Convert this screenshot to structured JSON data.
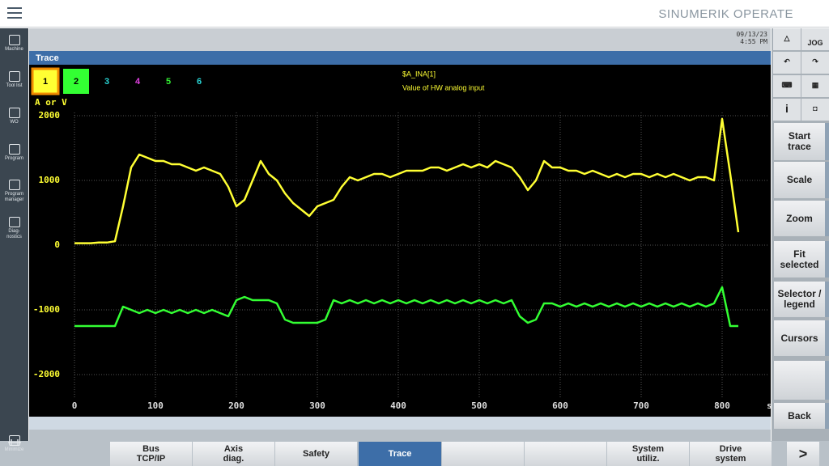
{
  "header": {
    "brand": "SINUMERIK OPERATE",
    "date": "09/13/23",
    "time": "4:55 PM",
    "jog": "JOG"
  },
  "sidebar": [
    "Machine",
    "Tool list",
    "WO",
    "Program",
    "Program\nmanager",
    "Diag-\nnostics",
    "Minimize"
  ],
  "window_title": "Trace",
  "channels": [
    {
      "label": "1",
      "color": "#000000"
    },
    {
      "label": "2",
      "color": "#000000"
    },
    {
      "label": "3",
      "color": "#29d3d3"
    },
    {
      "label": "4",
      "color": "#e040e0"
    },
    {
      "label": "5",
      "color": "#33ee33"
    },
    {
      "label": "6",
      "color": "#29d3d3"
    }
  ],
  "signal": {
    "name": "$A_INA[1]",
    "description": "Value of HW analog input"
  },
  "softkeys": [
    "Start\ntrace",
    "Scale",
    "Zoom",
    "Fit\nselected",
    "Selector /\nlegend",
    "Cursors",
    "Back"
  ],
  "bottom_keys": [
    "Bus\nTCP/IP",
    "Axis\ndiag.",
    "Safety",
    "Trace",
    "System\nutiliz.",
    "Drive\nsystem",
    ">"
  ],
  "chart_data": {
    "type": "line",
    "y_label": "A or V",
    "x_label": "s",
    "x": [
      0,
      10,
      20,
      30,
      40,
      50,
      60,
      70,
      80,
      90,
      100,
      110,
      120,
      130,
      140,
      150,
      160,
      170,
      180,
      190,
      200,
      210,
      220,
      230,
      240,
      250,
      260,
      270,
      280,
      290,
      300,
      310,
      320,
      330,
      340,
      350,
      360,
      370,
      380,
      390,
      400,
      410,
      420,
      430,
      440,
      450,
      460,
      470,
      480,
      490,
      500,
      510,
      520,
      530,
      540,
      550,
      560,
      570,
      580,
      590,
      600,
      610,
      620,
      630,
      640,
      650,
      660,
      670,
      680,
      690,
      700,
      710,
      720,
      730,
      740,
      750,
      760,
      770,
      780,
      790,
      800,
      810,
      820
    ],
    "series": [
      {
        "name": "1",
        "color": "#ffff33",
        "values": [
          30,
          30,
          30,
          40,
          40,
          60,
          600,
          1200,
          1400,
          1350,
          1300,
          1300,
          1250,
          1250,
          1200,
          1150,
          1200,
          1150,
          1100,
          900,
          600,
          700,
          1000,
          1300,
          1100,
          1000,
          800,
          650,
          550,
          450,
          600,
          650,
          700,
          900,
          1050,
          1000,
          1050,
          1100,
          1100,
          1050,
          1100,
          1150,
          1150,
          1150,
          1200,
          1200,
          1150,
          1200,
          1250,
          1200,
          1250,
          1200,
          1300,
          1250,
          1200,
          1050,
          850,
          1000,
          1300,
          1200,
          1200,
          1150,
          1150,
          1100,
          1150,
          1100,
          1050,
          1100,
          1050,
          1100,
          1100,
          1050,
          1100,
          1050,
          1100,
          1050,
          1000,
          1050,
          1050,
          1000,
          1950,
          1100,
          200
        ]
      },
      {
        "name": "2",
        "color": "#33ff33",
        "values": [
          -1250,
          -1250,
          -1250,
          -1250,
          -1250,
          -1250,
          -950,
          -1000,
          -1050,
          -1000,
          -1050,
          -1000,
          -1050,
          -1000,
          -1050,
          -1000,
          -1050,
          -1000,
          -1050,
          -1100,
          -850,
          -800,
          -850,
          -850,
          -850,
          -900,
          -1150,
          -1200,
          -1200,
          -1200,
          -1200,
          -1150,
          -850,
          -900,
          -850,
          -900,
          -850,
          -900,
          -850,
          -900,
          -850,
          -900,
          -850,
          -900,
          -850,
          -900,
          -850,
          -900,
          -850,
          -900,
          -850,
          -900,
          -850,
          -900,
          -850,
          -1100,
          -1200,
          -1150,
          -900,
          -900,
          -950,
          -900,
          -950,
          -900,
          -950,
          -900,
          -950,
          -900,
          -950,
          -900,
          -950,
          -900,
          -950,
          -900,
          -950,
          -900,
          -950,
          -900,
          -950,
          -900,
          -650,
          -1250,
          -1250
        ]
      }
    ],
    "xlim": [
      0,
      856
    ],
    "ylim": [
      -2350,
      2050
    ],
    "xticks": [
      0,
      100,
      200,
      300,
      400,
      500,
      600,
      700,
      800
    ],
    "yticks": [
      -2000,
      -1000,
      0,
      1000,
      2000
    ],
    "grid": true
  }
}
